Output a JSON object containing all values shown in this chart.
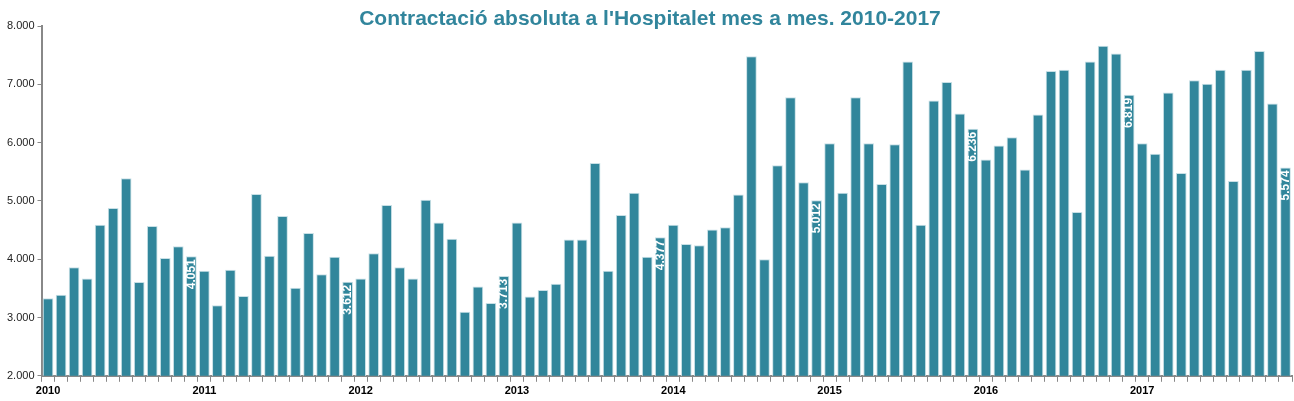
{
  "chart_data": {
    "type": "bar",
    "title": "Contractació absoluta a l'Hospitalet  mes a mes. 2010-2017",
    "categories": [
      "2010",
      null,
      null,
      null,
      null,
      null,
      null,
      null,
      null,
      null,
      null,
      null,
      "2011",
      null,
      null,
      null,
      null,
      null,
      null,
      null,
      null,
      null,
      null,
      null,
      "2012",
      null,
      null,
      null,
      null,
      null,
      null,
      null,
      null,
      null,
      null,
      null,
      "2013",
      null,
      null,
      null,
      null,
      null,
      null,
      null,
      null,
      null,
      null,
      null,
      "2014",
      null,
      null,
      null,
      null,
      null,
      null,
      null,
      null,
      null,
      null,
      null,
      "2015",
      null,
      null,
      null,
      null,
      null,
      null,
      null,
      null,
      null,
      null,
      null,
      "2016",
      null,
      null,
      null,
      null,
      null,
      null,
      null,
      null,
      null,
      null,
      null,
      "2017",
      null,
      null,
      null,
      null,
      null,
      null,
      null,
      null,
      null,
      null,
      null
    ],
    "values": [
      3330,
      3390,
      3860,
      3670,
      4590,
      4880,
      5390,
      3610,
      4570,
      4020,
      4220,
      4051,
      3800,
      3210,
      3820,
      3370,
      5120,
      4060,
      4740,
      3510,
      4450,
      3740,
      4040,
      3612,
      3670,
      4100,
      4930,
      3860,
      3670,
      5020,
      4630,
      4350,
      3100,
      3530,
      3250,
      3713,
      4630,
      3360,
      3470,
      3580,
      4340,
      4340,
      5650,
      3800,
      4760,
      5140,
      4040,
      4377,
      4590,
      4260,
      4240,
      4510,
      4550,
      5110,
      7480,
      4000,
      5610,
      6780,
      5320,
      5012,
      5990,
      5140,
      6780,
      5990,
      5290,
      5970,
      7390,
      4590,
      6720,
      7040,
      6500,
      6236,
      5710,
      5950,
      6090,
      5540,
      6480,
      7230,
      7250,
      4810,
      7390,
      7660,
      7530,
      6819,
      5990,
      5810,
      6860,
      5480,
      7070,
      7010,
      7250,
      5340,
      7250,
      7570,
      6670,
      5574
    ],
    "value_labels": [
      null,
      null,
      null,
      null,
      null,
      null,
      null,
      null,
      null,
      null,
      null,
      "4.051",
      null,
      null,
      null,
      null,
      null,
      null,
      null,
      null,
      null,
      null,
      null,
      "3.612",
      null,
      null,
      null,
      null,
      null,
      null,
      null,
      null,
      null,
      null,
      null,
      "3.713",
      null,
      null,
      null,
      null,
      null,
      null,
      null,
      null,
      null,
      null,
      null,
      "4.377",
      null,
      null,
      null,
      null,
      null,
      null,
      null,
      null,
      null,
      null,
      null,
      "5.012",
      null,
      null,
      null,
      null,
      null,
      null,
      null,
      null,
      null,
      null,
      null,
      "6.236",
      null,
      null,
      null,
      null,
      null,
      null,
      null,
      null,
      null,
      null,
      null,
      "6.819",
      null,
      null,
      null,
      null,
      null,
      null,
      null,
      null,
      null,
      null,
      null,
      "5.574"
    ],
    "color": "#31869b",
    "ylim": [
      2000,
      8000
    ],
    "yticks": [
      {
        "value": 2000,
        "label": "2.000"
      },
      {
        "value": 3000,
        "label": "3.000"
      },
      {
        "value": 4000,
        "label": "4.000"
      },
      {
        "value": 5000,
        "label": "5.000"
      },
      {
        "value": 6000,
        "label": "6.000"
      },
      {
        "value": 7000,
        "label": "7.000"
      },
      {
        "value": 8000,
        "label": "8.000"
      }
    ],
    "grid": false,
    "legend": false
  }
}
